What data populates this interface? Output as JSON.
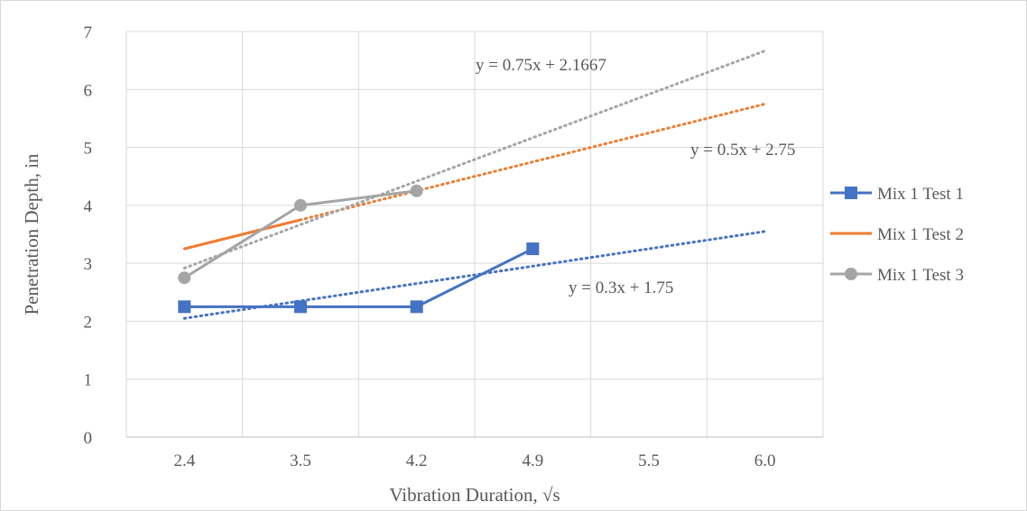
{
  "chart_data": {
    "type": "line",
    "title": "",
    "xlabel": "Vibration Duration, √s",
    "ylabel": "Penetration Depth, in",
    "categories": [
      "2.4",
      "3.5",
      "4.2",
      "4.9",
      "5.5",
      "6.0"
    ],
    "ylim": [
      0,
      7
    ],
    "yticks": [
      "0",
      "1",
      "2",
      "3",
      "4",
      "5",
      "6",
      "7"
    ],
    "grid": true,
    "legend_position": "right",
    "series": [
      {
        "name": "Mix 1 Test 1",
        "color": "#4472C4",
        "marker": "square",
        "values": [
          2.25,
          2.25,
          2.25,
          3.25,
          null,
          null
        ],
        "trendline": {
          "label": "y = 0.3x + 1.75",
          "slope": 0.3,
          "intercept": 1.75
        }
      },
      {
        "name": "Mix 1 Test 2",
        "color": "#ED7D31",
        "marker": "none",
        "values": [
          3.25,
          3.75,
          null,
          null,
          null,
          null
        ],
        "trendline": {
          "label": "y = 0.5x + 2.75",
          "slope": 0.5,
          "intercept": 2.75
        }
      },
      {
        "name": "Mix 1 Test 3",
        "color": "#A5A5A5",
        "marker": "circle",
        "values": [
          2.75,
          4.0,
          4.25,
          null,
          null,
          null
        ],
        "trendline": {
          "label": "y = 0.75x + 2.1667",
          "slope": 0.75,
          "intercept": 2.1667
        }
      }
    ]
  }
}
